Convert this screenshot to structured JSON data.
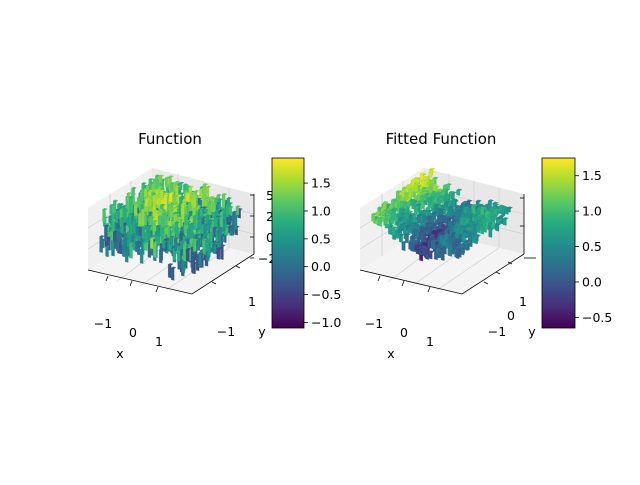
{
  "chart_data": [
    {
      "type": "surface3d",
      "title": "Function",
      "xlabel": "x",
      "ylabel": "y",
      "zlabel": "",
      "x_ticks": [
        "−1",
        "0",
        "1"
      ],
      "y_ticks": [
        "−1",
        "1"
      ],
      "z_ticks": [
        "−2",
        "0",
        "2",
        "5"
      ],
      "xlim": [
        -1.6,
        1.6
      ],
      "ylim": [
        -1.6,
        1.6
      ],
      "zlim": [
        -3,
        5
      ],
      "colorbar": {
        "range": [
          -1.1,
          1.95
        ],
        "ticks": [
          -1.0,
          -0.5,
          0.0,
          0.5,
          1.0,
          1.5
        ],
        "tick_labels": [
          "−1.0",
          "−0.5",
          "0.0",
          "0.5",
          "1.0",
          "1.5"
        ]
      },
      "colormap": "viridis",
      "surface": "noisy",
      "grid": true
    },
    {
      "type": "surface3d",
      "title": "Fitted Function",
      "xlabel": "x",
      "ylabel": "y",
      "zlabel": "",
      "x_ticks": [
        "−1",
        "0",
        "1"
      ],
      "y_ticks": [
        "−1",
        "0",
        "1"
      ],
      "z_ticks": [],
      "xlim": [
        -1.6,
        1.6
      ],
      "ylim": [
        -1.6,
        1.6
      ],
      "zlim": [
        -3,
        5
      ],
      "colorbar": {
        "range": [
          -0.65,
          1.75
        ],
        "ticks": [
          -0.5,
          0.0,
          0.5,
          1.0,
          1.5
        ],
        "tick_labels": [
          "−0.5",
          "0.0",
          "0.5",
          "1.0",
          "1.5"
        ]
      },
      "colormap": "viridis",
      "surface": "smooth",
      "grid": true
    }
  ]
}
